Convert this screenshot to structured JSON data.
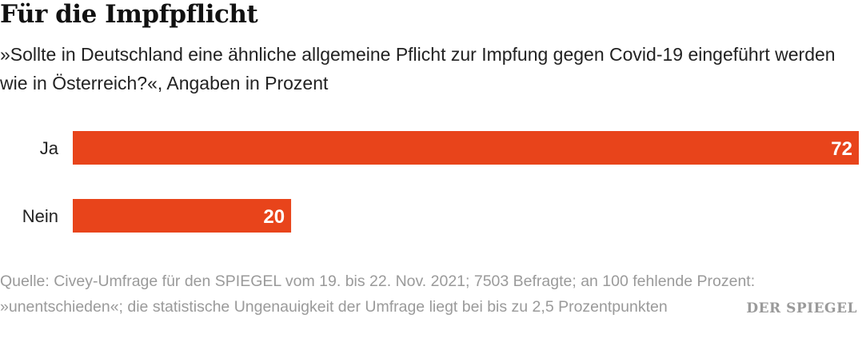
{
  "header": {
    "title": "Für die Impfpflicht",
    "subtitle": "»Sollte in Deutschland eine ähnliche allgemeine Pflicht zur Impfung gegen Covid-19 eingeführt werden wie in Österreich?«, Angaben in Prozent"
  },
  "chart_data": {
    "type": "bar",
    "orientation": "horizontal",
    "categories": [
      "Ja",
      "Nein"
    ],
    "values": [
      72,
      20
    ],
    "xlim": [
      0,
      72
    ],
    "grid": false,
    "legend": "none",
    "bar_color": "#e8441b"
  },
  "footer": {
    "source": "Quelle: Civey-Umfrage für den SPIEGEL vom 19. bis 22. Nov. 2021; 7503 Befragte; an 100 fehlende Prozent: »unentschieden«; die statistische Ungenauigkeit der Umfrage liegt bei bis zu 2,5 Prozentpunkten",
    "brand": "DER SPIEGEL"
  }
}
